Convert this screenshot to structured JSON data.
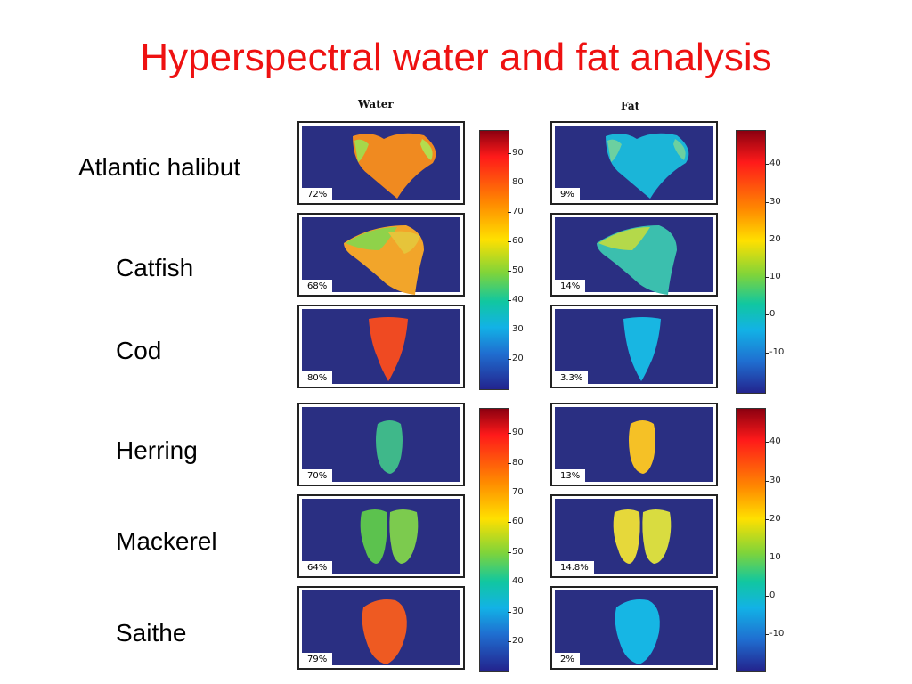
{
  "title": "Hyperspectral water and fat analysis",
  "columns": {
    "water": "Water",
    "fat": "Fat"
  },
  "fish": [
    {
      "name": "Atlantic halibut",
      "water": "72%",
      "fat": "9%"
    },
    {
      "name": "Catfish",
      "water": "68%",
      "fat": "14%"
    },
    {
      "name": "Cod",
      "water": "80%",
      "fat": "3.3%"
    },
    {
      "name": "Herring",
      "water": "70%",
      "fat": "13%"
    },
    {
      "name": "Mackerel",
      "water": "64%",
      "fat": "14.8%"
    },
    {
      "name": "Saithe",
      "water": "79%",
      "fat": "2%"
    }
  ],
  "water_scale": [
    "90",
    "80",
    "70",
    "60",
    "50",
    "40",
    "30",
    "20"
  ],
  "fat_scale": [
    "40",
    "30",
    "20",
    "10",
    "0",
    "-10"
  ],
  "colors": {
    "title": "#ee1111",
    "background_panel": "#2a2f82"
  }
}
